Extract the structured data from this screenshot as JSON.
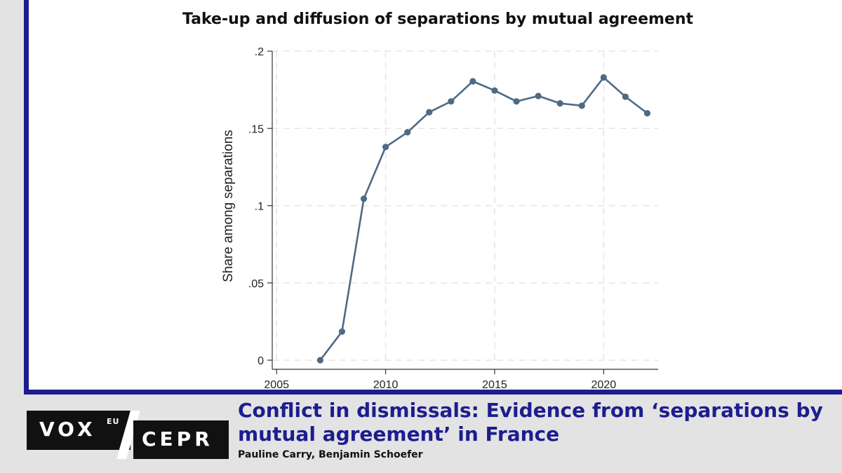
{
  "chart_data": {
    "type": "line",
    "title": "Take-up and diffusion of separations by mutual agreement",
    "xlabel": "",
    "ylabel": "Share among separations",
    "xlim": [
      2004.8,
      2022.5
    ],
    "ylim": [
      0,
      0.2
    ],
    "x_ticks": [
      2005,
      2010,
      2015,
      2020
    ],
    "x_tick_labels": [
      "2005",
      "2010",
      "2015",
      "2020"
    ],
    "y_ticks": [
      0,
      0.05,
      0.1,
      0.15,
      0.2
    ],
    "y_tick_labels": [
      "0",
      ".05",
      ".1",
      ".15",
      ".2"
    ],
    "grid": true,
    "series": [
      {
        "name": "Share among separations",
        "color": "#4e6a84",
        "x": [
          2007,
          2008,
          2009,
          2010,
          2011,
          2012,
          2013,
          2014,
          2015,
          2016,
          2017,
          2018,
          2019,
          2020,
          2021,
          2022
        ],
        "values": [
          0.0,
          0.0185,
          0.1045,
          0.138,
          0.1475,
          0.1605,
          0.1675,
          0.1805,
          0.1745,
          0.1675,
          0.171,
          0.1662,
          0.1647,
          0.183,
          0.1705,
          0.1598
        ]
      }
    ]
  },
  "footer": {
    "logo_vox": "VOX",
    "logo_eu": "EU",
    "logo_cepr": "CEPR",
    "headline": "Conflict in dismissals: Evidence from ‘separations by mutual agreement’ in France",
    "authors": "Pauline Carry, Benjamin Schoefer"
  },
  "colors": {
    "frame": "#1d1d8f",
    "headline": "#1d1d8f",
    "line": "#4e6a84",
    "grid": "#e6e6e6"
  }
}
